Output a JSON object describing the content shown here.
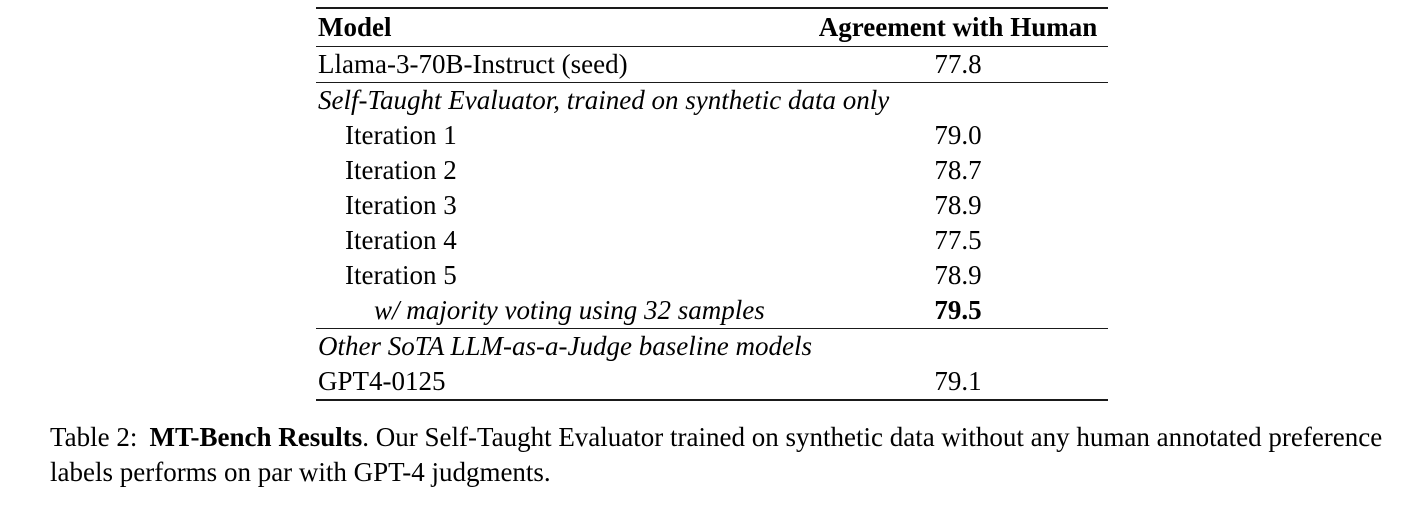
{
  "table": {
    "columns": [
      "Model",
      "Agreement with Human"
    ],
    "rows": [
      {
        "model": "Llama-3-70B-Instruct (seed)",
        "value": "77.8"
      },
      {
        "model": "Self-Taught Evaluator, trained on synthetic data only",
        "value": ""
      },
      {
        "model": "Iteration 1",
        "value": "79.0"
      },
      {
        "model": "Iteration 2",
        "value": "78.7"
      },
      {
        "model": "Iteration 3",
        "value": "78.9"
      },
      {
        "model": "Iteration 4",
        "value": "77.5"
      },
      {
        "model": "Iteration 5",
        "value": "78.9"
      },
      {
        "model": "w/ majority voting using 32 samples",
        "value": "79.5"
      },
      {
        "model": "Other SoTA LLM-as-a-Judge baseline models",
        "value": ""
      },
      {
        "model": "GPT4-0125",
        "value": "79.1"
      }
    ]
  },
  "caption": {
    "label": "Table 2:",
    "bold_title": "MT-Bench Results",
    "text": ". Our Self-Taught Evaluator trained on synthetic data without any human annotated preference labels performs on par with GPT-4 judgments."
  },
  "colors": {
    "text": "#000000",
    "rule": "#1a1a1a",
    "background": "#ffffff"
  }
}
